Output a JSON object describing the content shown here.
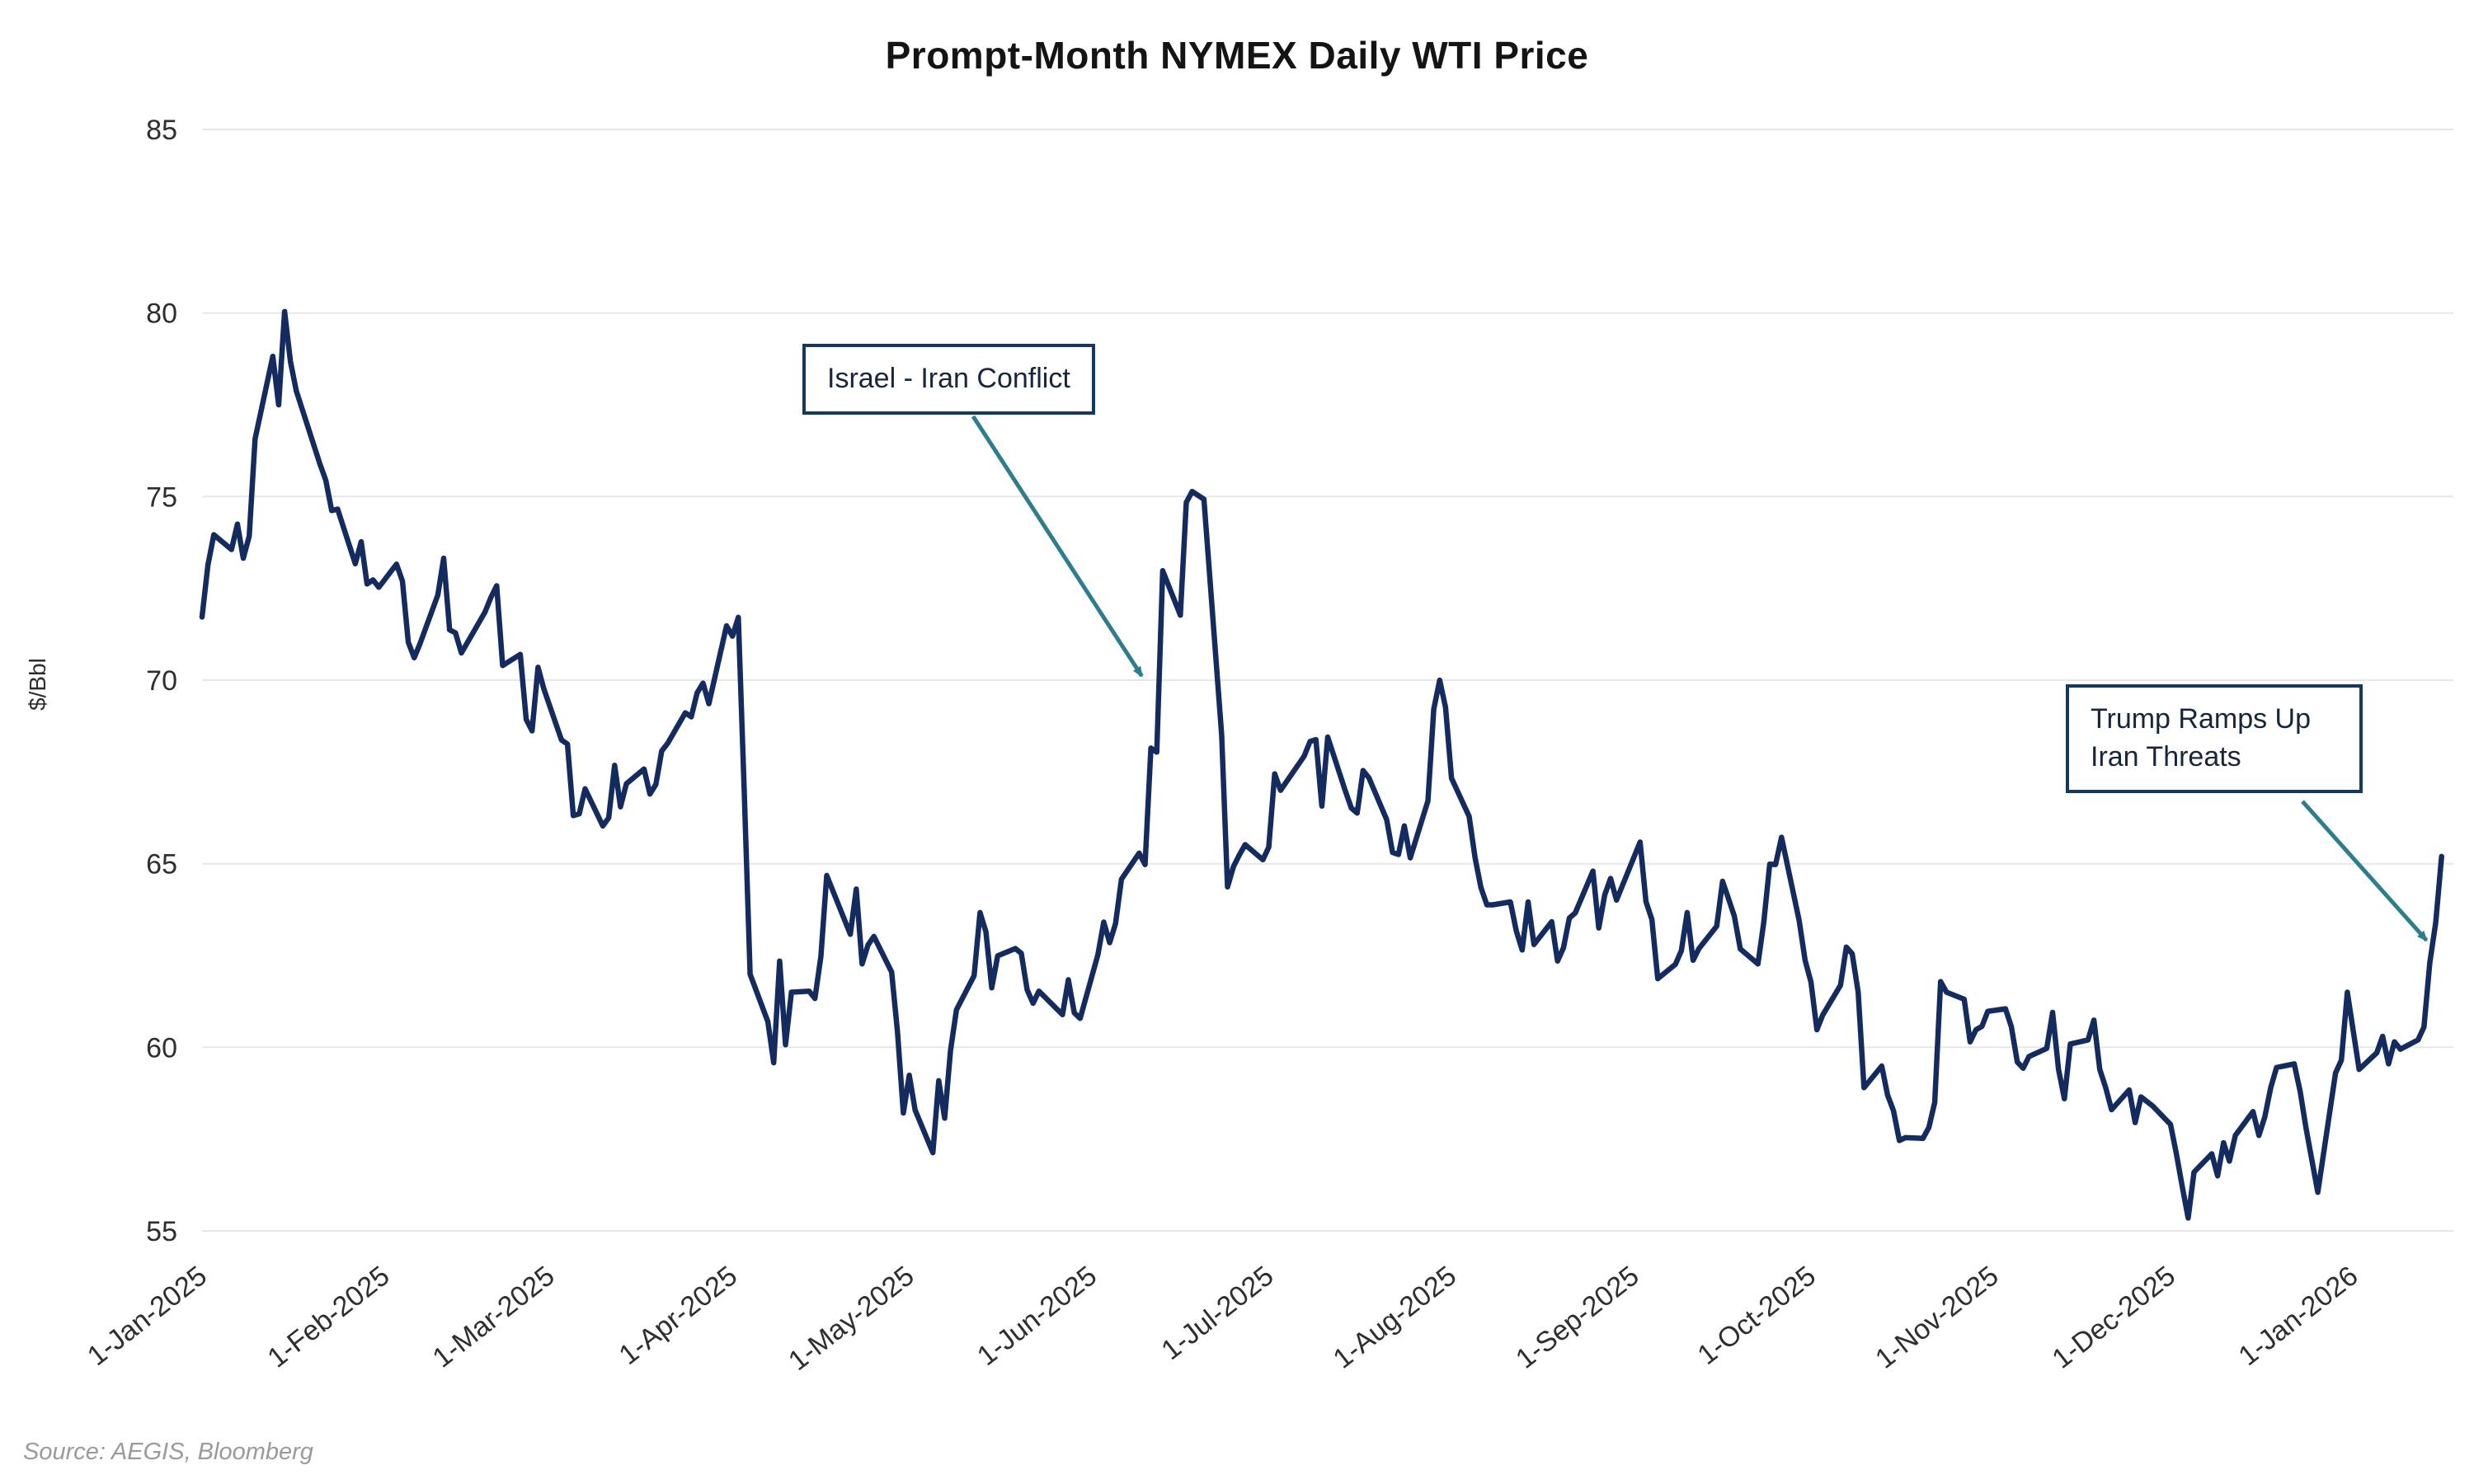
{
  "chart_data": {
    "type": "line",
    "title": "Prompt-Month NYMEX Daily WTI Price",
    "ylabel": "$/Bbl",
    "source": "Source: AEGIS, Bloomberg",
    "ylim": [
      55,
      85
    ],
    "yticks": [
      55,
      60,
      65,
      70,
      75,
      80,
      85
    ],
    "x_domain": [
      "2025-01-01",
      "2026-01-18"
    ],
    "xticks": [
      {
        "label": "1-Jan-2025",
        "date": "2025-01-01"
      },
      {
        "label": "1-Feb-2025",
        "date": "2025-02-01"
      },
      {
        "label": "1-Mar-2025",
        "date": "2025-03-01"
      },
      {
        "label": "1-Apr-2025",
        "date": "2025-04-01"
      },
      {
        "label": "1-May-2025",
        "date": "2025-05-01"
      },
      {
        "label": "1-Jun-2025",
        "date": "2025-06-01"
      },
      {
        "label": "1-Jul-2025",
        "date": "2025-07-01"
      },
      {
        "label": "1-Aug-2025",
        "date": "2025-08-01"
      },
      {
        "label": "1-Sep-2025",
        "date": "2025-09-01"
      },
      {
        "label": "1-Oct-2025",
        "date": "2025-10-01"
      },
      {
        "label": "1-Nov-2025",
        "date": "2025-11-01"
      },
      {
        "label": "1-Dec-2025",
        "date": "2025-12-01"
      },
      {
        "label": "1-Jan-2026",
        "date": "2026-01-01"
      }
    ],
    "grid": "horizontal",
    "legend": "none",
    "line_color": "#132b5f",
    "annotation_color": "#2c7d8d",
    "annotations": [
      {
        "label": "Israel - Iran Conflict",
        "target_date": "2025-06-10",
        "target_value": 69.8
      },
      {
        "label": "Trump Ramps Up Iran Threats",
        "target_date": "2026-01-14",
        "target_value": 62.6
      }
    ],
    "series": [
      {
        "name": "Prompt-Month NYMEX WTI",
        "points": [
          [
            "2025-01-01",
            71.72
          ],
          [
            "2025-01-02",
            73.13
          ],
          [
            "2025-01-03",
            73.96
          ],
          [
            "2025-01-06",
            73.56
          ],
          [
            "2025-01-07",
            74.25
          ],
          [
            "2025-01-08",
            73.32
          ],
          [
            "2025-01-09",
            73.92
          ],
          [
            "2025-01-10",
            76.57
          ],
          [
            "2025-01-13",
            78.82
          ],
          [
            "2025-01-14",
            77.5
          ],
          [
            "2025-01-15",
            80.04
          ],
          [
            "2025-01-16",
            78.68
          ],
          [
            "2025-01-17",
            77.88
          ],
          [
            "2025-01-21",
            75.89
          ],
          [
            "2025-01-22",
            75.44
          ],
          [
            "2025-01-23",
            74.62
          ],
          [
            "2025-01-24",
            74.66
          ],
          [
            "2025-01-27",
            73.17
          ],
          [
            "2025-01-28",
            73.77
          ],
          [
            "2025-01-29",
            72.62
          ],
          [
            "2025-01-30",
            72.73
          ],
          [
            "2025-01-31",
            72.53
          ],
          [
            "2025-02-03",
            73.16
          ],
          [
            "2025-02-04",
            72.7
          ],
          [
            "2025-02-05",
            71.03
          ],
          [
            "2025-02-06",
            70.61
          ],
          [
            "2025-02-07",
            71.0
          ],
          [
            "2025-02-10",
            72.32
          ],
          [
            "2025-02-11",
            73.32
          ],
          [
            "2025-02-12",
            71.37
          ],
          [
            "2025-02-13",
            71.29
          ],
          [
            "2025-02-14",
            70.74
          ],
          [
            "2025-02-18",
            71.85
          ],
          [
            "2025-02-19",
            72.25
          ],
          [
            "2025-02-20",
            72.57
          ],
          [
            "2025-02-21",
            70.4
          ],
          [
            "2025-02-24",
            70.7
          ],
          [
            "2025-02-25",
            68.93
          ],
          [
            "2025-02-26",
            68.62
          ],
          [
            "2025-02-27",
            70.35
          ],
          [
            "2025-02-28",
            69.76
          ],
          [
            "2025-03-03",
            68.37
          ],
          [
            "2025-03-04",
            68.26
          ],
          [
            "2025-03-05",
            66.31
          ],
          [
            "2025-03-06",
            66.36
          ],
          [
            "2025-03-07",
            67.04
          ],
          [
            "2025-03-10",
            66.03
          ],
          [
            "2025-03-11",
            66.25
          ],
          [
            "2025-03-12",
            67.68
          ],
          [
            "2025-03-13",
            66.55
          ],
          [
            "2025-03-14",
            67.18
          ],
          [
            "2025-03-17",
            67.58
          ],
          [
            "2025-03-18",
            66.9
          ],
          [
            "2025-03-19",
            67.16
          ],
          [
            "2025-03-20",
            68.07
          ],
          [
            "2025-03-21",
            68.28
          ],
          [
            "2025-03-24",
            69.11
          ],
          [
            "2025-03-25",
            69.0
          ],
          [
            "2025-03-26",
            69.65
          ],
          [
            "2025-03-27",
            69.92
          ],
          [
            "2025-03-28",
            69.36
          ],
          [
            "2025-03-31",
            71.48
          ],
          [
            "2025-04-01",
            71.2
          ],
          [
            "2025-04-02",
            71.71
          ],
          [
            "2025-04-03",
            66.95
          ],
          [
            "2025-04-04",
            61.99
          ],
          [
            "2025-04-07",
            60.7
          ],
          [
            "2025-04-08",
            59.58
          ],
          [
            "2025-04-09",
            62.35
          ],
          [
            "2025-04-10",
            60.07
          ],
          [
            "2025-04-11",
            61.5
          ],
          [
            "2025-04-14",
            61.53
          ],
          [
            "2025-04-15",
            61.33
          ],
          [
            "2025-04-16",
            62.47
          ],
          [
            "2025-04-17",
            64.68
          ],
          [
            "2025-04-21",
            63.08
          ],
          [
            "2025-04-22",
            64.31
          ],
          [
            "2025-04-23",
            62.27
          ],
          [
            "2025-04-24",
            62.79
          ],
          [
            "2025-04-25",
            63.02
          ],
          [
            "2025-04-28",
            62.05
          ],
          [
            "2025-04-29",
            60.42
          ],
          [
            "2025-04-30",
            58.21
          ],
          [
            "2025-05-01",
            59.24
          ],
          [
            "2025-05-02",
            58.29
          ],
          [
            "2025-05-05",
            57.13
          ],
          [
            "2025-05-06",
            59.09
          ],
          [
            "2025-05-07",
            58.07
          ],
          [
            "2025-05-08",
            59.91
          ],
          [
            "2025-05-09",
            61.02
          ],
          [
            "2025-05-12",
            61.95
          ],
          [
            "2025-05-13",
            63.67
          ],
          [
            "2025-05-14",
            63.15
          ],
          [
            "2025-05-15",
            61.62
          ],
          [
            "2025-05-16",
            62.49
          ],
          [
            "2025-05-19",
            62.69
          ],
          [
            "2025-05-20",
            62.56
          ],
          [
            "2025-05-21",
            61.57
          ],
          [
            "2025-05-22",
            61.2
          ],
          [
            "2025-05-23",
            61.53
          ],
          [
            "2025-05-27",
            60.89
          ],
          [
            "2025-05-28",
            61.84
          ],
          [
            "2025-05-29",
            60.94
          ],
          [
            "2025-05-30",
            60.79
          ],
          [
            "2025-06-02",
            62.52
          ],
          [
            "2025-06-03",
            63.41
          ],
          [
            "2025-06-04",
            62.85
          ],
          [
            "2025-06-05",
            63.37
          ],
          [
            "2025-06-06",
            64.58
          ],
          [
            "2025-06-09",
            65.29
          ],
          [
            "2025-06-10",
            64.98
          ],
          [
            "2025-06-11",
            68.15
          ],
          [
            "2025-06-12",
            68.04
          ],
          [
            "2025-06-13",
            72.98
          ],
          [
            "2025-06-16",
            71.77
          ],
          [
            "2025-06-17",
            74.84
          ],
          [
            "2025-06-18",
            75.14
          ],
          [
            "2025-06-20",
            74.93
          ],
          [
            "2025-06-23",
            68.51
          ],
          [
            "2025-06-24",
            64.37
          ],
          [
            "2025-06-25",
            64.92
          ],
          [
            "2025-06-26",
            65.24
          ],
          [
            "2025-06-27",
            65.52
          ],
          [
            "2025-06-30",
            65.11
          ],
          [
            "2025-07-01",
            65.45
          ],
          [
            "2025-07-02",
            67.45
          ],
          [
            "2025-07-03",
            67.0
          ],
          [
            "2025-07-07",
            67.93
          ],
          [
            "2025-07-08",
            68.33
          ],
          [
            "2025-07-09",
            68.38
          ],
          [
            "2025-07-10",
            66.57
          ],
          [
            "2025-07-11",
            68.45
          ],
          [
            "2025-07-14",
            66.98
          ],
          [
            "2025-07-15",
            66.52
          ],
          [
            "2025-07-16",
            66.38
          ],
          [
            "2025-07-17",
            67.54
          ],
          [
            "2025-07-18",
            67.34
          ],
          [
            "2025-07-21",
            66.2
          ],
          [
            "2025-07-22",
            65.31
          ],
          [
            "2025-07-23",
            65.25
          ],
          [
            "2025-07-24",
            66.03
          ],
          [
            "2025-07-25",
            65.16
          ],
          [
            "2025-07-28",
            66.71
          ],
          [
            "2025-07-29",
            69.21
          ],
          [
            "2025-07-30",
            70.0
          ],
          [
            "2025-07-31",
            69.26
          ],
          [
            "2025-08-01",
            67.33
          ],
          [
            "2025-08-04",
            66.29
          ],
          [
            "2025-08-05",
            65.16
          ],
          [
            "2025-08-06",
            64.35
          ],
          [
            "2025-08-07",
            63.88
          ],
          [
            "2025-08-08",
            63.88
          ],
          [
            "2025-08-11",
            63.96
          ],
          [
            "2025-08-12",
            63.17
          ],
          [
            "2025-08-13",
            62.65
          ],
          [
            "2025-08-14",
            63.96
          ],
          [
            "2025-08-15",
            62.8
          ],
          [
            "2025-08-18",
            63.42
          ],
          [
            "2025-08-19",
            62.35
          ],
          [
            "2025-08-20",
            62.71
          ],
          [
            "2025-08-21",
            63.52
          ],
          [
            "2025-08-22",
            63.66
          ],
          [
            "2025-08-25",
            64.8
          ],
          [
            "2025-08-26",
            63.25
          ],
          [
            "2025-08-27",
            64.15
          ],
          [
            "2025-08-28",
            64.6
          ],
          [
            "2025-08-29",
            64.01
          ],
          [
            "2025-09-02",
            65.59
          ],
          [
            "2025-09-03",
            63.97
          ],
          [
            "2025-09-04",
            63.48
          ],
          [
            "2025-09-05",
            61.87
          ],
          [
            "2025-09-08",
            62.26
          ],
          [
            "2025-09-09",
            62.63
          ],
          [
            "2025-09-10",
            63.67
          ],
          [
            "2025-09-11",
            62.37
          ],
          [
            "2025-09-12",
            62.69
          ],
          [
            "2025-09-15",
            63.3
          ],
          [
            "2025-09-16",
            64.52
          ],
          [
            "2025-09-17",
            64.05
          ],
          [
            "2025-09-18",
            63.57
          ],
          [
            "2025-09-19",
            62.68
          ],
          [
            "2025-09-22",
            62.27
          ],
          [
            "2025-09-23",
            63.41
          ],
          [
            "2025-09-24",
            64.99
          ],
          [
            "2025-09-25",
            64.98
          ],
          [
            "2025-09-26",
            65.72
          ],
          [
            "2025-09-29",
            63.45
          ],
          [
            "2025-09-30",
            62.37
          ],
          [
            "2025-10-01",
            61.78
          ],
          [
            "2025-10-02",
            60.48
          ],
          [
            "2025-10-03",
            60.88
          ],
          [
            "2025-10-06",
            61.69
          ],
          [
            "2025-10-07",
            62.73
          ],
          [
            "2025-10-08",
            62.55
          ],
          [
            "2025-10-09",
            61.51
          ],
          [
            "2025-10-10",
            58.9
          ],
          [
            "2025-10-13",
            59.49
          ],
          [
            "2025-10-14",
            58.7
          ],
          [
            "2025-10-15",
            58.27
          ],
          [
            "2025-10-16",
            57.46
          ],
          [
            "2025-10-17",
            57.54
          ],
          [
            "2025-10-20",
            57.52
          ],
          [
            "2025-10-21",
            57.82
          ],
          [
            "2025-10-22",
            58.5
          ],
          [
            "2025-10-23",
            61.79
          ],
          [
            "2025-10-24",
            61.5
          ],
          [
            "2025-10-27",
            61.31
          ],
          [
            "2025-10-28",
            60.15
          ],
          [
            "2025-10-29",
            60.48
          ],
          [
            "2025-10-30",
            60.57
          ],
          [
            "2025-10-31",
            60.98
          ],
          [
            "2025-11-03",
            61.05
          ],
          [
            "2025-11-04",
            60.56
          ],
          [
            "2025-11-05",
            59.6
          ],
          [
            "2025-11-06",
            59.43
          ],
          [
            "2025-11-07",
            59.75
          ],
          [
            "2025-11-10",
            59.97
          ],
          [
            "2025-11-11",
            60.95
          ],
          [
            "2025-11-12",
            59.4
          ],
          [
            "2025-11-13",
            58.6
          ],
          [
            "2025-11-14",
            60.09
          ],
          [
            "2025-11-17",
            60.2
          ],
          [
            "2025-11-18",
            60.74
          ],
          [
            "2025-11-19",
            59.4
          ],
          [
            "2025-11-20",
            58.9
          ],
          [
            "2025-11-21",
            58.3
          ],
          [
            "2025-11-24",
            58.84
          ],
          [
            "2025-11-25",
            57.95
          ],
          [
            "2025-11-26",
            58.65
          ],
          [
            "2025-11-28",
            58.4
          ],
          [
            "2025-12-01",
            57.9
          ],
          [
            "2025-12-02",
            57.1
          ],
          [
            "2025-12-03",
            56.2
          ],
          [
            "2025-12-04",
            55.35
          ],
          [
            "2025-12-05",
            56.6
          ],
          [
            "2025-12-08",
            57.1
          ],
          [
            "2025-12-09",
            56.5
          ],
          [
            "2025-12-10",
            57.4
          ],
          [
            "2025-12-11",
            56.9
          ],
          [
            "2025-12-12",
            57.6
          ],
          [
            "2025-12-15",
            58.25
          ],
          [
            "2025-12-16",
            57.6
          ],
          [
            "2025-12-17",
            58.1
          ],
          [
            "2025-12-18",
            58.9
          ],
          [
            "2025-12-19",
            59.45
          ],
          [
            "2025-12-22",
            59.55
          ],
          [
            "2025-12-23",
            58.8
          ],
          [
            "2025-12-24",
            57.8
          ],
          [
            "2025-12-26",
            56.05
          ],
          [
            "2025-12-29",
            59.3
          ],
          [
            "2025-12-30",
            59.65
          ],
          [
            "2025-12-31",
            61.5
          ],
          [
            "2026-01-02",
            59.4
          ],
          [
            "2026-01-05",
            59.85
          ],
          [
            "2026-01-06",
            60.3
          ],
          [
            "2026-01-07",
            59.55
          ],
          [
            "2026-01-08",
            60.15
          ],
          [
            "2026-01-09",
            59.95
          ],
          [
            "2026-01-12",
            60.2
          ],
          [
            "2026-01-13",
            60.55
          ],
          [
            "2026-01-14",
            62.3
          ],
          [
            "2026-01-15",
            63.4
          ],
          [
            "2026-01-16",
            65.2
          ]
        ]
      }
    ]
  }
}
